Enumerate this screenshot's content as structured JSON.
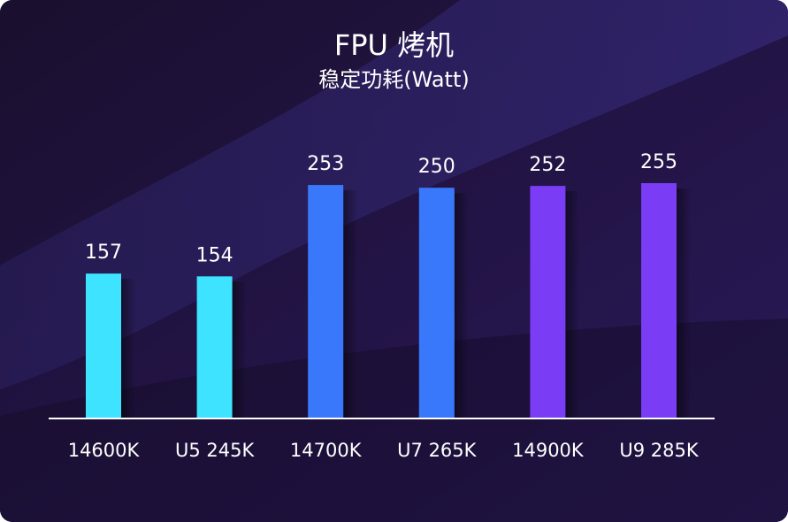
{
  "title": "FPU 烤机",
  "subtitle": "稳定功耗(Watt)",
  "colors": {
    "background": "#1c1033",
    "text": "#ffffff",
    "axis": "#ffffff",
    "series_cyan": "#3ee3ff",
    "series_blue": "#3a78fb",
    "series_purple": "#7a3cf5"
  },
  "chart_data": {
    "type": "bar",
    "title": "FPU 烤机",
    "subtitle": "稳定功耗(Watt)",
    "categories": [
      "14600K",
      "U5 245K",
      "14700K",
      "U7 265K",
      "14900K",
      "U9 285K"
    ],
    "values": [
      157,
      154,
      253,
      250,
      252,
      255
    ],
    "bar_colors": [
      "#3ee3ff",
      "#3ee3ff",
      "#3a78fb",
      "#3a78fb",
      "#7a3cf5",
      "#7a3cf5"
    ],
    "ylim": [
      0,
      255
    ],
    "grid": false,
    "data_labels": true
  }
}
